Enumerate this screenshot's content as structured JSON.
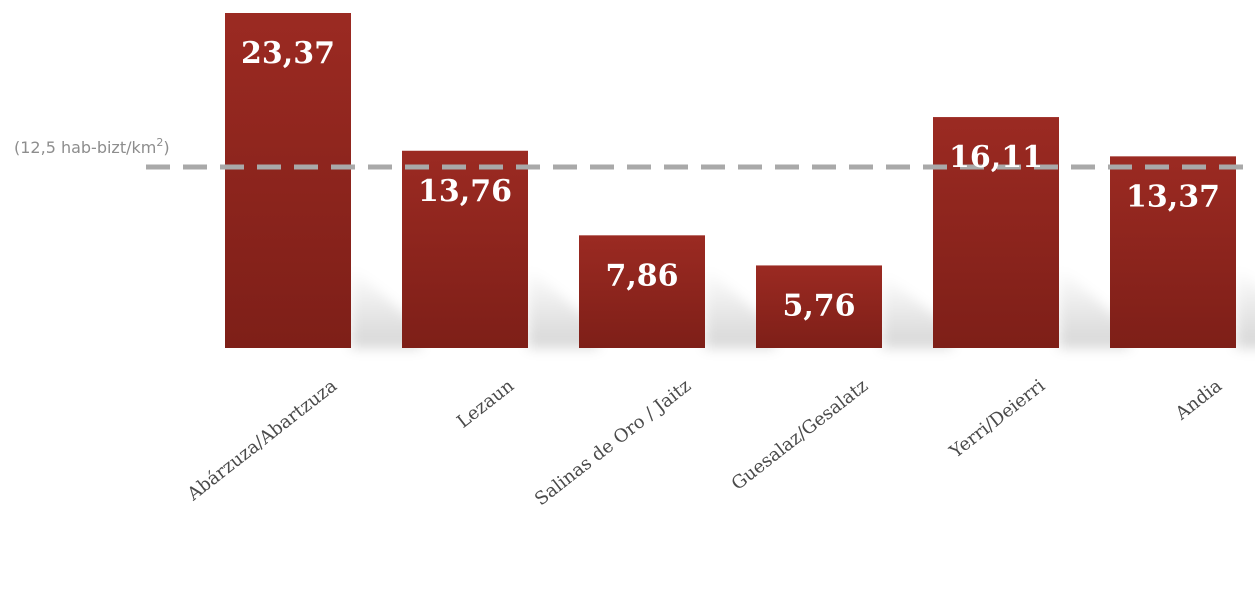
{
  "chart_data": {
    "type": "bar",
    "categories": [
      "Abárzuza/Abartzuza",
      "Lezaun",
      "Salinas de Oro / Jaitz",
      "Guesalaz/Gesalatz",
      "Yerri/Deierri",
      "Andia"
    ],
    "values": [
      23.37,
      13.76,
      7.86,
      5.76,
      16.11,
      13.37
    ],
    "value_labels": [
      "23,37",
      "13,76",
      "7,86",
      "5,76",
      "16,11",
      "13,37"
    ],
    "title": "",
    "xlabel": "",
    "ylabel": "",
    "ylim": [
      0,
      23.37
    ],
    "grid": false,
    "legend": "none",
    "reference_line": {
      "value": 12.5,
      "label_prefix": "(12,5 hab-bizt/km",
      "label_sup": "2",
      "label_suffix": ")",
      "color": "#a9a9a9"
    },
    "colors": {
      "bar_top": "#9b2a22",
      "bar_bottom": "#7e1f18",
      "value_text": "#ffffff",
      "category_text": "#4a4a4a",
      "reference_text": "#8d8d8d"
    }
  }
}
